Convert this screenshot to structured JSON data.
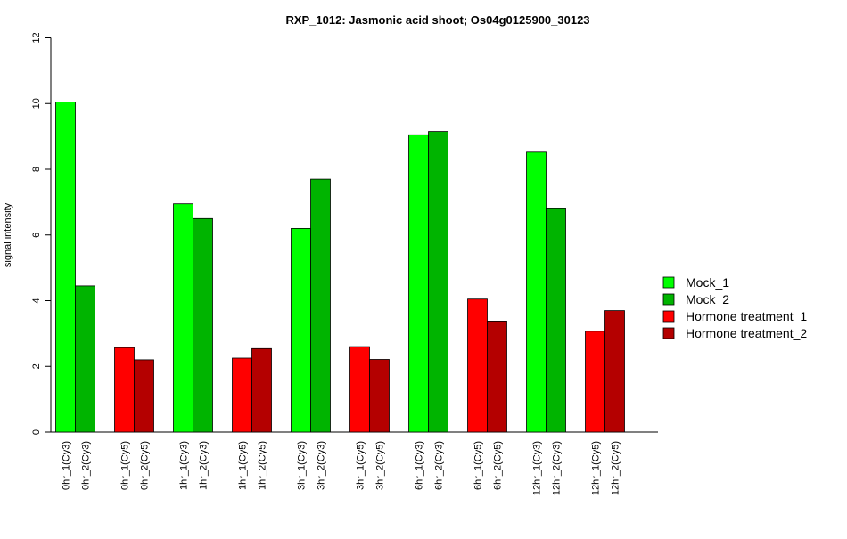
{
  "chart_data": {
    "type": "bar",
    "title": "RXP_1012: Jasmonic acid shoot; Os04g0125900_30123",
    "xlabel": "",
    "ylabel": "signal intensity",
    "ylim": [
      0,
      12
    ],
    "yticks": [
      "0",
      "2",
      "4",
      "6",
      "8",
      "10",
      "12"
    ],
    "grid": false,
    "legend_position": "right",
    "groups": [
      {
        "series": [
          "Mock_1",
          "Mock_2"
        ],
        "labels": [
          "0hr_1(Cy3)",
          "0hr_2(Cy3)"
        ],
        "values": [
          10.05,
          4.45
        ]
      },
      {
        "series": [
          "Hormone treatment_1",
          "Hormone treatment_2"
        ],
        "labels": [
          "0hr_1(Cy5)",
          "0hr_2(Cy5)"
        ],
        "values": [
          2.57,
          2.2
        ]
      },
      {
        "series": [
          "Mock_1",
          "Mock_2"
        ],
        "labels": [
          "1hr_1(Cy3)",
          "1hr_2(Cy3)"
        ],
        "values": [
          6.95,
          6.5
        ]
      },
      {
        "series": [
          "Hormone treatment_1",
          "Hormone treatment_2"
        ],
        "labels": [
          "1hr_1(Cy5)",
          "1hr_2(Cy5)"
        ],
        "values": [
          2.25,
          2.54
        ]
      },
      {
        "series": [
          "Mock_1",
          "Mock_2"
        ],
        "labels": [
          "3hr_1(Cy3)",
          "3hr_2(Cy3)"
        ],
        "values": [
          6.2,
          7.7
        ]
      },
      {
        "series": [
          "Hormone treatment_1",
          "Hormone treatment_2"
        ],
        "labels": [
          "3hr_1(Cy5)",
          "3hr_2(Cy5)"
        ],
        "values": [
          2.6,
          2.21
        ]
      },
      {
        "series": [
          "Mock_1",
          "Mock_2"
        ],
        "labels": [
          "6hr_1(Cy3)",
          "6hr_2(Cy3)"
        ],
        "values": [
          9.05,
          9.15
        ]
      },
      {
        "series": [
          "Hormone treatment_1",
          "Hormone treatment_2"
        ],
        "labels": [
          "6hr_1(Cy5)",
          "6hr_2(Cy5)"
        ],
        "values": [
          4.05,
          3.38
        ]
      },
      {
        "series": [
          "Mock_1",
          "Mock_2"
        ],
        "labels": [
          "12hr_1(Cy3)",
          "12hr_2(Cy3)"
        ],
        "values": [
          8.52,
          6.8
        ]
      },
      {
        "series": [
          "Hormone treatment_1",
          "Hormone treatment_2"
        ],
        "labels": [
          "12hr_1(Cy5)",
          "12hr_2(Cy5)"
        ],
        "values": [
          3.07,
          3.7
        ]
      }
    ],
    "legend": [
      {
        "name": "Mock_1",
        "color": "#00ff00"
      },
      {
        "name": "Mock_2",
        "color": "#00b400"
      },
      {
        "name": "Hormone treatment_1",
        "color": "#ff0000"
      },
      {
        "name": "Hormone treatment_2",
        "color": "#b40000"
      }
    ]
  }
}
